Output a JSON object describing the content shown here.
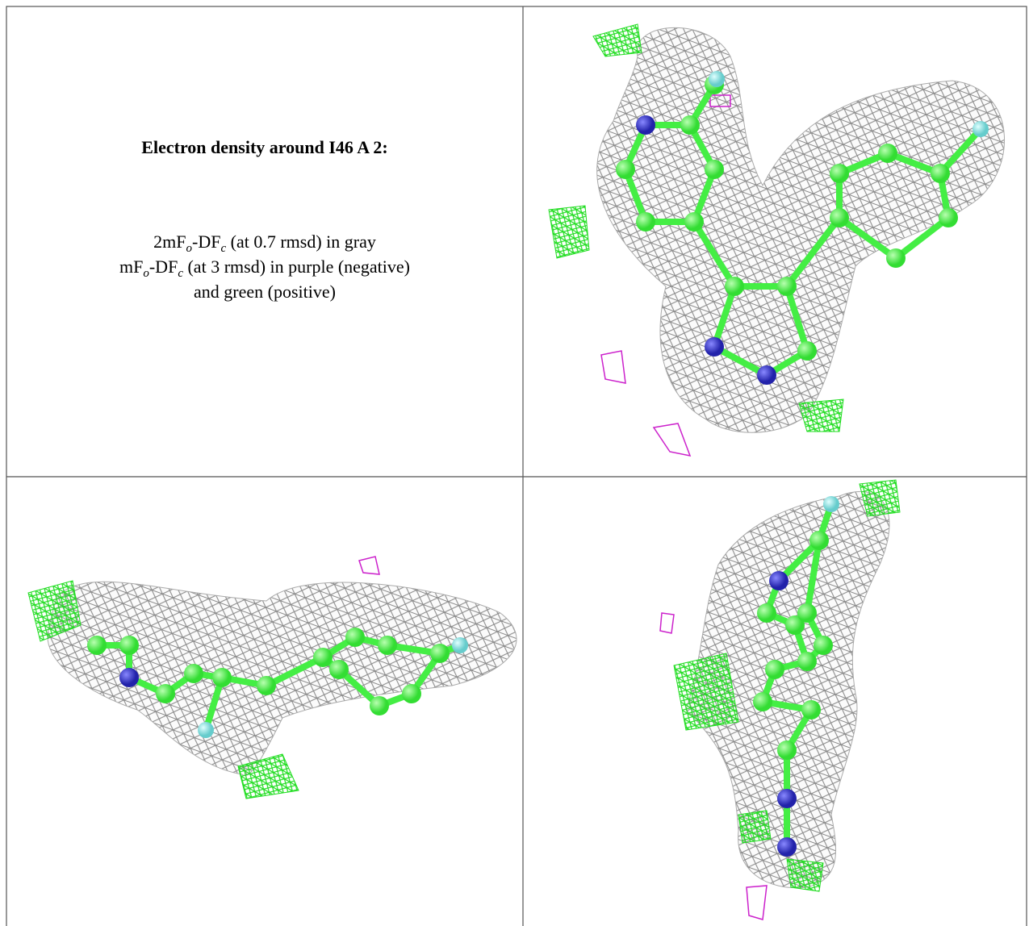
{
  "caption": {
    "title": "Electron density around I46 A 2:",
    "lines": [
      [
        "2mF",
        "o",
        "-DF",
        "c",
        " (at 0.7 rmsd) in gray"
      ],
      [
        "mF",
        "o",
        "-DF",
        "c",
        " (at 3 rmsd) in purple (negative)"
      ],
      [
        "and green (positive)"
      ]
    ]
  }
}
